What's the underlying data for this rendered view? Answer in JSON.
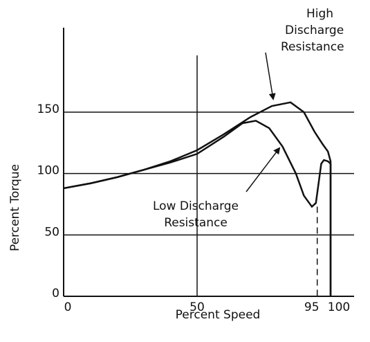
{
  "chart_data": {
    "type": "line",
    "xlabel": "Percent Speed",
    "ylabel": "Percent Torque",
    "xlim": [
      0,
      100
    ],
    "xticks": [
      0,
      50,
      95,
      100
    ],
    "ylim": [
      0,
      150
    ],
    "yticks": [
      0,
      50,
      100,
      150
    ],
    "grid": true,
    "series": [
      {
        "name": "High Discharge Resistance",
        "color": "#111111",
        "x": [
          0,
          10,
          20,
          30,
          40,
          50,
          60,
          70,
          78,
          85,
          90,
          94,
          97,
          99,
          100,
          100
        ],
        "values": [
          88,
          92,
          97,
          103,
          110,
          119,
          132,
          146,
          155,
          158,
          150,
          134,
          124,
          118,
          110,
          0
        ]
      },
      {
        "name": "Low Discharge Resistance",
        "color": "#111111",
        "x": [
          0,
          10,
          20,
          30,
          40,
          50,
          60,
          67,
          72,
          77,
          82,
          87,
          90,
          93,
          94.5,
          95.5,
          96.5,
          97.5,
          99,
          100,
          100
        ],
        "values": [
          88,
          92,
          97,
          103,
          109,
          116,
          130,
          141,
          143,
          137,
          122,
          100,
          82,
          73,
          76,
          92,
          108,
          111,
          110,
          108,
          0
        ]
      }
    ],
    "annotations": [
      {
        "lines": [
          "High",
          "Discharge",
          "Resistance"
        ]
      },
      {
        "lines": [
          "Low Discharge",
          "Resistance"
        ]
      }
    ]
  }
}
